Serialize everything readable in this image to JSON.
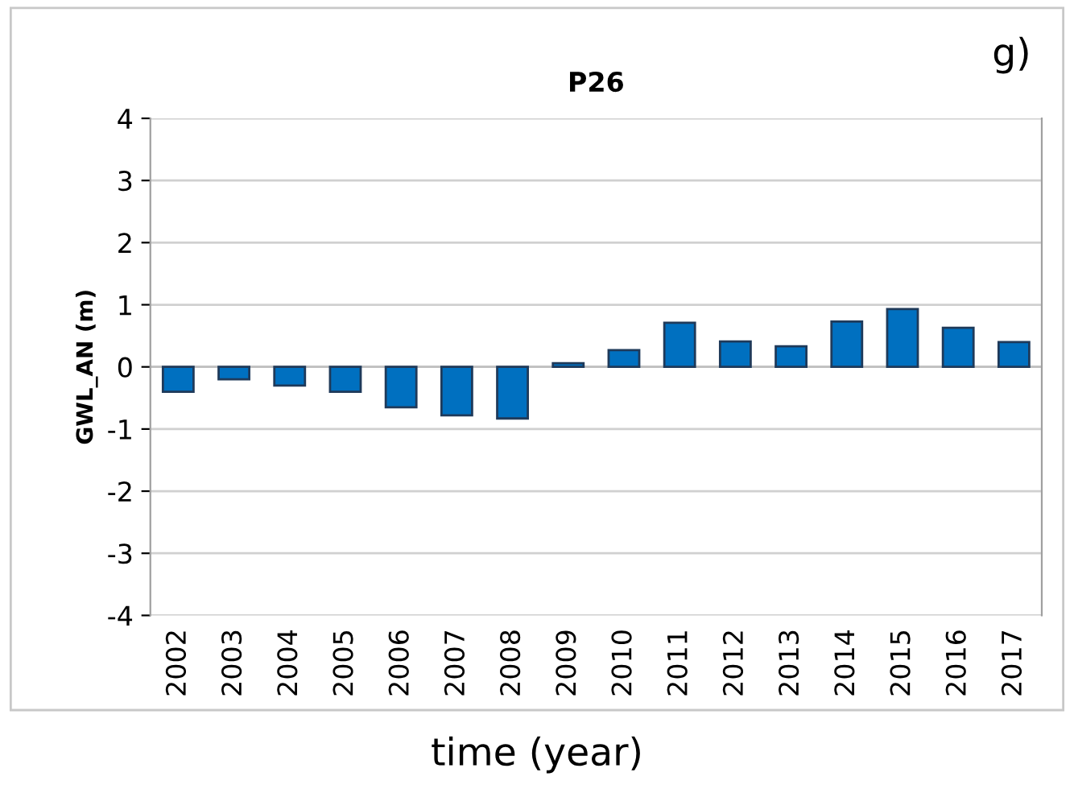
{
  "chart_data": {
    "type": "bar",
    "title": "P26",
    "xlabel": "time (year)",
    "ylabel": "GWL_AN (m)",
    "annotations": [
      "g)"
    ],
    "categories": [
      "2002",
      "2003",
      "2004",
      "2005",
      "2006",
      "2007",
      "2008",
      "2009",
      "2010",
      "2011",
      "2012",
      "2013",
      "2014",
      "2015",
      "2016",
      "2017"
    ],
    "values": [
      -0.4,
      -0.2,
      -0.3,
      -0.4,
      -0.65,
      -0.78,
      -0.83,
      0.06,
      0.27,
      0.71,
      0.41,
      0.33,
      0.73,
      0.93,
      0.63,
      0.4
    ],
    "color": "#0070c0",
    "ylim": [
      -4,
      4
    ],
    "yticks": [
      -4,
      -3,
      -2,
      -1,
      0,
      1,
      2,
      3,
      4
    ],
    "grid": "y"
  }
}
